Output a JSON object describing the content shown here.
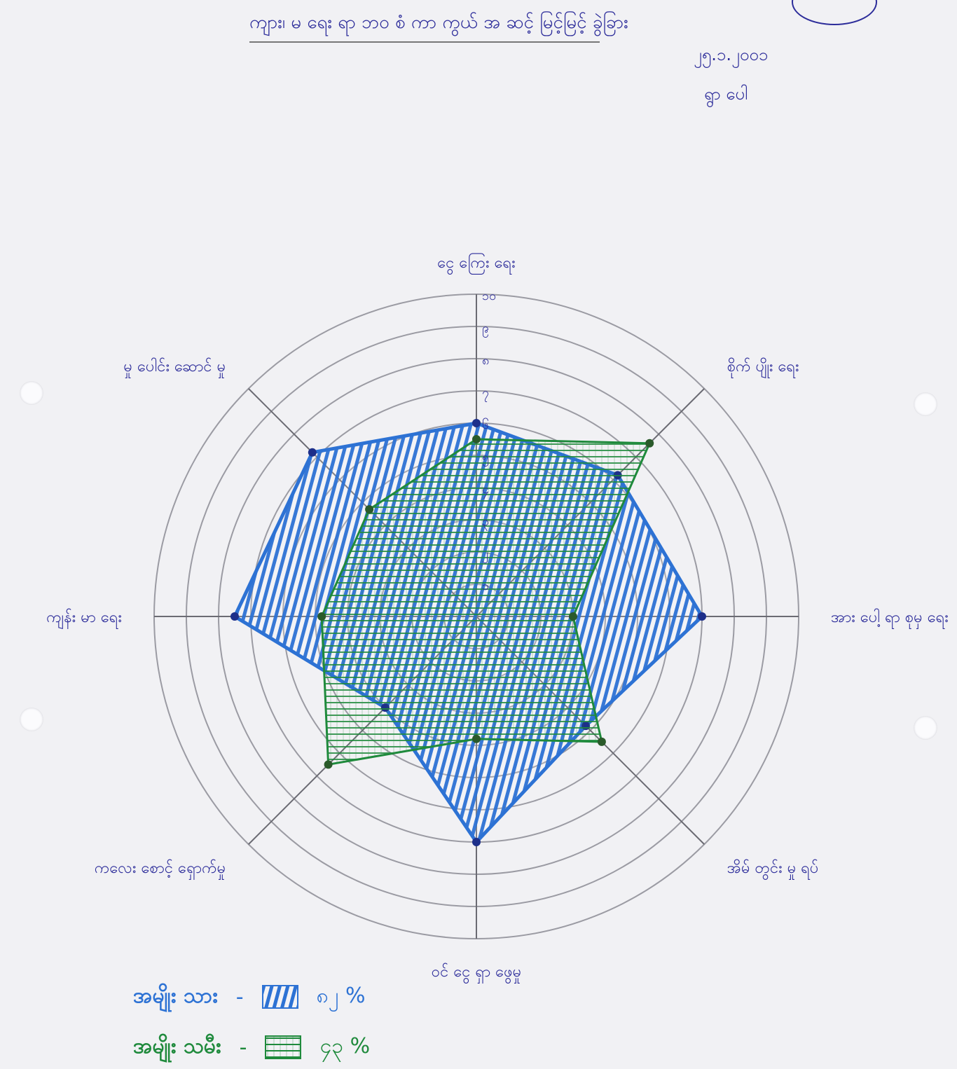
{
  "header": {
    "title": "ကျား၊ မ ရေး ရာ ဘဝ စံ ကာ ကွယ် အ ဆင့် မြင့်မြင့် ခွဲခြား",
    "date": "၂၅.၁.၂၀၀၁",
    "place": "ရွာ ပေါ"
  },
  "chart_data": {
    "type": "radar",
    "axes": [
      "ငွေ ကြေး ရေး",
      "စိုက် ပျိုး ရေး",
      "အား ပေါ့ ရာ စုမှ ရေး",
      "အိမ် တွင်း မှု ရပ်",
      "ဝင် ငွေ ရှာ ဖွေမှု",
      "ကလေး စောင့် ရှောက်မှု",
      "ကျန်း မာ ရေး",
      "မှု ပေါင်း ဆောင် မှု"
    ],
    "ticks": [
      "၁",
      "၂",
      "၃",
      "၄",
      "၅",
      "၆",
      "၇",
      "၈",
      "၉",
      "၁၀"
    ],
    "rmax": 10,
    "series": [
      {
        "name": "အမျိုး သား",
        "color": "#2d72d4",
        "pattern": "vertical",
        "percent": "၈၂ %",
        "values": [
          6,
          6.2,
          7,
          4.8,
          7,
          4,
          7.5,
          7.2
        ]
      },
      {
        "name": "အမျိုး သမီး",
        "color": "#1f8a3c",
        "pattern": "grid",
        "percent": "၄၃ %",
        "values": [
          5.5,
          7.6,
          3,
          5.5,
          3.8,
          6.5,
          4.8,
          4.7
        ]
      }
    ]
  }
}
